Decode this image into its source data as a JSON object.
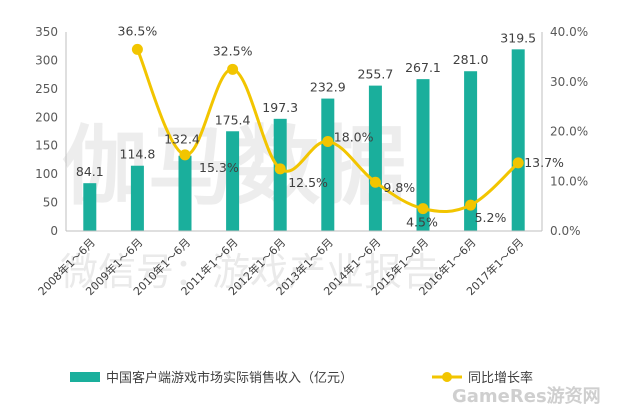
{
  "chart_data": {
    "type": "bar",
    "categories": [
      "2008年1～6月",
      "2009年1～6月",
      "2010年1～6月",
      "2011年1～6月",
      "2012年1～6月",
      "2013年1～6月",
      "2014年1～6月",
      "2015年1～6月",
      "2016年1～6月",
      "2017年1～6月"
    ],
    "series": [
      {
        "name": "中国客户端游戏市场实际销售收入（亿元）",
        "type": "bar",
        "axis": "left",
        "color": "#1aaf9c",
        "values": [
          84.1,
          114.8,
          132.4,
          175.4,
          197.3,
          232.9,
          255.7,
          267.1,
          281.0,
          319.5
        ],
        "labels": [
          "84.1",
          "114.8",
          "132.4",
          "175.4",
          "197.3",
          "232.9",
          "255.7",
          "267.1",
          "281.0",
          "319.5"
        ]
      },
      {
        "name": "同比增长率",
        "type": "line",
        "axis": "right",
        "color": "#f2c500",
        "values": [
          null,
          36.5,
          15.3,
          32.5,
          12.5,
          18.0,
          9.8,
          4.5,
          5.2,
          13.7
        ],
        "labels": [
          "",
          "36.5%",
          "15.3%",
          "32.5%",
          "12.5%",
          "18.0%",
          "9.8%",
          "4.5%",
          "5.2%",
          "13.7%"
        ]
      }
    ],
    "left_axis": {
      "ylim": [
        0,
        350
      ],
      "ticks": [
        "0",
        "50",
        "100",
        "150",
        "200",
        "250",
        "300",
        "350"
      ]
    },
    "right_axis": {
      "ylim": [
        0,
        40
      ],
      "ticks": [
        "0.0%",
        "10.0%",
        "20.0%",
        "30.0%",
        "40.0%"
      ]
    },
    "legend_placement": "bottom",
    "grid": false,
    "watermarks": [
      "伽马数据",
      "微信号：游戏产业报告",
      "GameRes游资网"
    ]
  }
}
